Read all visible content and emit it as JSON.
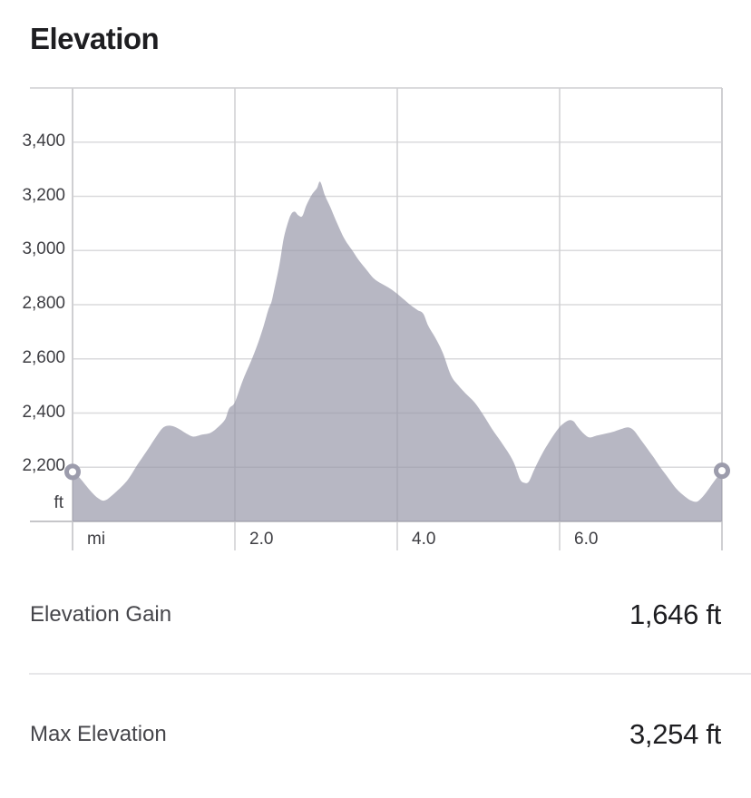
{
  "title": "Elevation",
  "chart_data": {
    "type": "area",
    "title": "Elevation",
    "x_unit_label": "mi",
    "y_unit_label": "ft",
    "xlim": [
      0,
      8
    ],
    "ylim": [
      2000,
      3600
    ],
    "grid": true,
    "x_ticks": [
      {
        "value": 2,
        "label": "2.0"
      },
      {
        "value": 4,
        "label": "4.0"
      },
      {
        "value": 6,
        "label": "6.0"
      }
    ],
    "y_ticks": [
      {
        "value": 2200,
        "label": "2,200"
      },
      {
        "value": 2400,
        "label": "2,400"
      },
      {
        "value": 2600,
        "label": "2,600"
      },
      {
        "value": 2800,
        "label": "2,800"
      },
      {
        "value": 3000,
        "label": "3,000"
      },
      {
        "value": 3200,
        "label": "3,200"
      },
      {
        "value": 3400,
        "label": "3,400"
      }
    ],
    "area_fill": "rgba(151,151,168,0.69)",
    "grid_color_h": "#dadadc",
    "grid_color_v": "#cfcfd2",
    "axis_color": "#c6c6c9",
    "marker_ring_color": "#9c9cac",
    "endpoint_markers": true,
    "profile": [
      [
        0,
        2183
      ],
      [
        0.09,
        2160
      ],
      [
        0.22,
        2113
      ],
      [
        0.31,
        2087
      ],
      [
        0.39,
        2077
      ],
      [
        0.49,
        2097
      ],
      [
        0.67,
        2150
      ],
      [
        0.8,
        2210
      ],
      [
        0.93,
        2267
      ],
      [
        1.03,
        2313
      ],
      [
        1.12,
        2347
      ],
      [
        1.21,
        2353
      ],
      [
        1.3,
        2343
      ],
      [
        1.41,
        2323
      ],
      [
        1.49,
        2313
      ],
      [
        1.59,
        2320
      ],
      [
        1.7,
        2327
      ],
      [
        1.8,
        2350
      ],
      [
        1.88,
        2377
      ],
      [
        1.93,
        2417
      ],
      [
        2,
        2440
      ],
      [
        2.1,
        2523
      ],
      [
        2.21,
        2600
      ],
      [
        2.29,
        2663
      ],
      [
        2.35,
        2717
      ],
      [
        2.41,
        2780
      ],
      [
        2.45,
        2810
      ],
      [
        2.48,
        2850
      ],
      [
        2.55,
        2950
      ],
      [
        2.6,
        3043
      ],
      [
        2.66,
        3110
      ],
      [
        2.7,
        3137
      ],
      [
        2.74,
        3143
      ],
      [
        2.78,
        3130
      ],
      [
        2.83,
        3127
      ],
      [
        2.88,
        3167
      ],
      [
        2.95,
        3207
      ],
      [
        3.01,
        3230
      ],
      [
        3.05,
        3254
      ],
      [
        3.11,
        3203
      ],
      [
        3.18,
        3157
      ],
      [
        3.26,
        3100
      ],
      [
        3.35,
        3043
      ],
      [
        3.44,
        3003
      ],
      [
        3.52,
        2967
      ],
      [
        3.61,
        2933
      ],
      [
        3.71,
        2897
      ],
      [
        3.81,
        2877
      ],
      [
        3.91,
        2860
      ],
      [
        4,
        2840
      ],
      [
        4.09,
        2817
      ],
      [
        4.17,
        2797
      ],
      [
        4.25,
        2780
      ],
      [
        4.32,
        2767
      ],
      [
        4.38,
        2723
      ],
      [
        4.47,
        2677
      ],
      [
        4.56,
        2623
      ],
      [
        4.66,
        2540
      ],
      [
        4.75,
        2503
      ],
      [
        4.84,
        2473
      ],
      [
        4.95,
        2440
      ],
      [
        5.06,
        2393
      ],
      [
        5.17,
        2340
      ],
      [
        5.28,
        2293
      ],
      [
        5.39,
        2243
      ],
      [
        5.45,
        2207
      ],
      [
        5.51,
        2157
      ],
      [
        5.56,
        2143
      ],
      [
        5.62,
        2147
      ],
      [
        5.69,
        2193
      ],
      [
        5.78,
        2247
      ],
      [
        5.87,
        2293
      ],
      [
        5.96,
        2333
      ],
      [
        6.03,
        2357
      ],
      [
        6.11,
        2373
      ],
      [
        6.17,
        2370
      ],
      [
        6.22,
        2350
      ],
      [
        6.3,
        2323
      ],
      [
        6.37,
        2310
      ],
      [
        6.46,
        2317
      ],
      [
        6.55,
        2323
      ],
      [
        6.65,
        2330
      ],
      [
        6.75,
        2340
      ],
      [
        6.84,
        2347
      ],
      [
        6.91,
        2337
      ],
      [
        6.98,
        2310
      ],
      [
        7.06,
        2277
      ],
      [
        7.15,
        2240
      ],
      [
        7.24,
        2200
      ],
      [
        7.34,
        2160
      ],
      [
        7.44,
        2120
      ],
      [
        7.54,
        2093
      ],
      [
        7.62,
        2077
      ],
      [
        7.69,
        2073
      ],
      [
        7.75,
        2087
      ],
      [
        7.82,
        2113
      ],
      [
        7.9,
        2147
      ],
      [
        7.96,
        2170
      ],
      [
        8,
        2187
      ]
    ]
  },
  "stats": [
    {
      "label": "Elevation Gain",
      "value": "1,646 ft"
    },
    {
      "label": "Max Elevation",
      "value": "3,254 ft"
    }
  ]
}
